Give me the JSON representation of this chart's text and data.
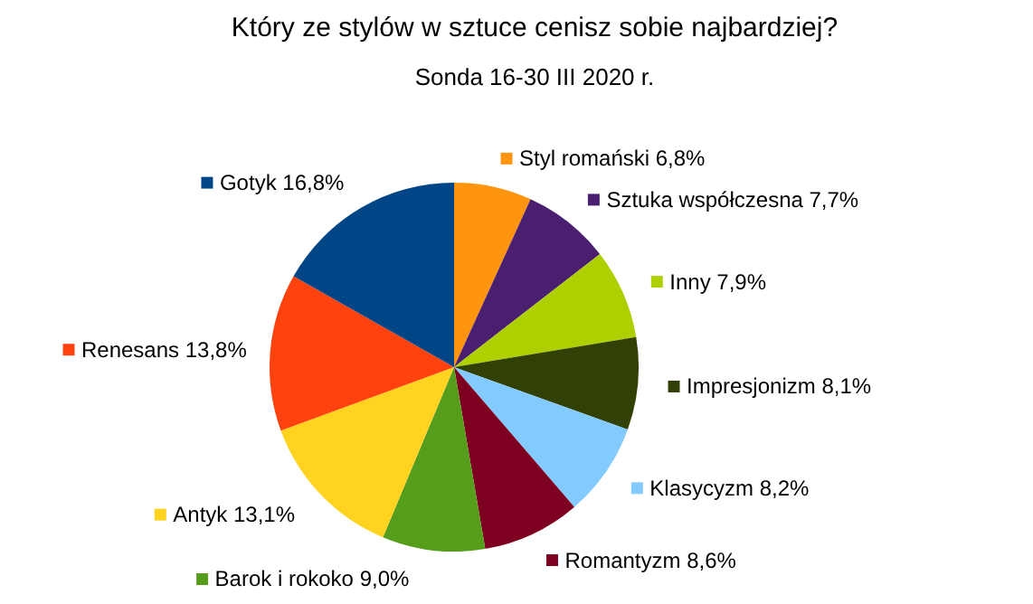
{
  "chart_data": {
    "type": "pie",
    "title": "Który ze stylów w sztuce cenisz sobie najbardziej?",
    "subtitle": "Sonda 16-30 III 2020 r.",
    "legend": "right",
    "categories": [
      "Styl romański",
      "Sztuka współczesna",
      "Inny",
      "Impresjonizm",
      "Klasycyzm",
      "Romantyzm",
      "Barok i rokoko",
      "Antyk",
      "Renesans",
      "Gotyk"
    ],
    "values": [
      6.8,
      7.7,
      7.9,
      8.1,
      8.2,
      8.6,
      9.0,
      13.1,
      13.8,
      16.8
    ],
    "value_labels": [
      "6,8%",
      "7,7%",
      "7,9%",
      "8,1%",
      "8,2%",
      "8,6%",
      "9,0%",
      "13,1%",
      "13,8%",
      "16,8%"
    ],
    "colors": [
      "#ff950e",
      "#4b1f6f",
      "#aecf00",
      "#314004",
      "#83caff",
      "#7e0021",
      "#579d1c",
      "#ffd320",
      "#ff420e",
      "#004586"
    ]
  }
}
